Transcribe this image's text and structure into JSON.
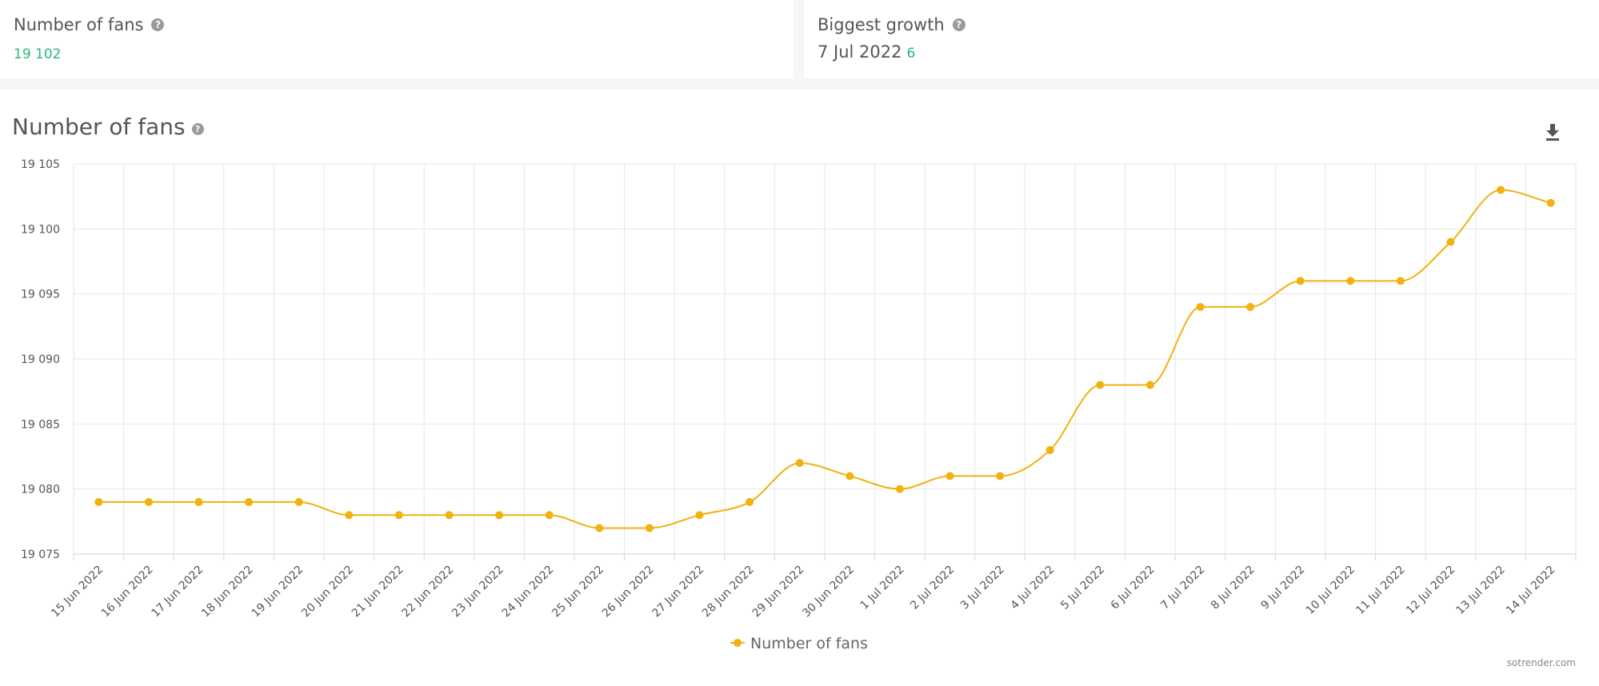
{
  "stats": {
    "fans_title": "Number of fans",
    "fans_value": "19 102",
    "growth_title": "Biggest growth",
    "growth_date": "7 Jul 2022",
    "growth_delta": "6",
    "help_glyph": "?"
  },
  "chart_panel": {
    "title": "Number of fans",
    "download_icon": "download-icon",
    "credit": "sotrender.com"
  },
  "colors": {
    "series": "#f2b10f",
    "positive": "#2cb57b",
    "grid": "#e6e6e6"
  },
  "chart_data": {
    "type": "line",
    "title": "Number of fans",
    "xlabel": "",
    "ylabel": "",
    "ylim": [
      19075,
      19105
    ],
    "y_ticks": [
      19075,
      19080,
      19085,
      19090,
      19095,
      19100,
      19105
    ],
    "y_tick_labels": [
      "19 075",
      "19 080",
      "19 085",
      "19 090",
      "19 095",
      "19 100",
      "19 105"
    ],
    "categories": [
      "15 Jun 2022",
      "16 Jun 2022",
      "17 Jun 2022",
      "18 Jun 2022",
      "19 Jun 2022",
      "20 Jun 2022",
      "21 Jun 2022",
      "22 Jun 2022",
      "23 Jun 2022",
      "24 Jun 2022",
      "25 Jun 2022",
      "26 Jun 2022",
      "27 Jun 2022",
      "28 Jun 2022",
      "29 Jun 2022",
      "30 Jun 2022",
      "1 Jul 2022",
      "2 Jul 2022",
      "3 Jul 2022",
      "4 Jul 2022",
      "5 Jul 2022",
      "6 Jul 2022",
      "7 Jul 2022",
      "8 Jul 2022",
      "9 Jul 2022",
      "10 Jul 2022",
      "11 Jul 2022",
      "12 Jul 2022",
      "13 Jul 2022",
      "14 Jul 2022"
    ],
    "series": [
      {
        "name": "Number of fans",
        "values": [
          19079,
          19079,
          19079,
          19079,
          19079,
          19078,
          19078,
          19078,
          19078,
          19078,
          19077,
          19077,
          19078,
          19079,
          19082,
          19081,
          19080,
          19081,
          19081,
          19083,
          19088,
          19088,
          19094,
          19094,
          19096,
          19096,
          19096,
          19099,
          19103,
          19102
        ]
      }
    ],
    "grid": true,
    "legend": "bottom-center"
  }
}
